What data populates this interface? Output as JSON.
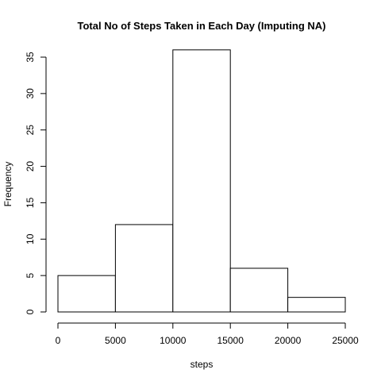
{
  "chart_data": {
    "type": "bar",
    "title": "Total No of Steps Taken in Each Day (Imputing NA)",
    "xlabel": "steps",
    "ylabel": "Frequency",
    "bins": [
      {
        "from": 0,
        "to": 5000,
        "count": 5
      },
      {
        "from": 5000,
        "to": 10000,
        "count": 12
      },
      {
        "from": 10000,
        "to": 15000,
        "count": 36
      },
      {
        "from": 15000,
        "to": 20000,
        "count": 6
      },
      {
        "from": 20000,
        "to": 25000,
        "count": 2
      }
    ],
    "xlim": [
      0,
      25000
    ],
    "ylim": [
      0,
      35
    ],
    "xticks": [
      "0",
      "5000",
      "10000",
      "15000",
      "20000",
      "25000"
    ],
    "yticks": [
      "0",
      "5",
      "10",
      "15",
      "20",
      "25",
      "30",
      "35"
    ],
    "grid": false,
    "legend": "none"
  }
}
